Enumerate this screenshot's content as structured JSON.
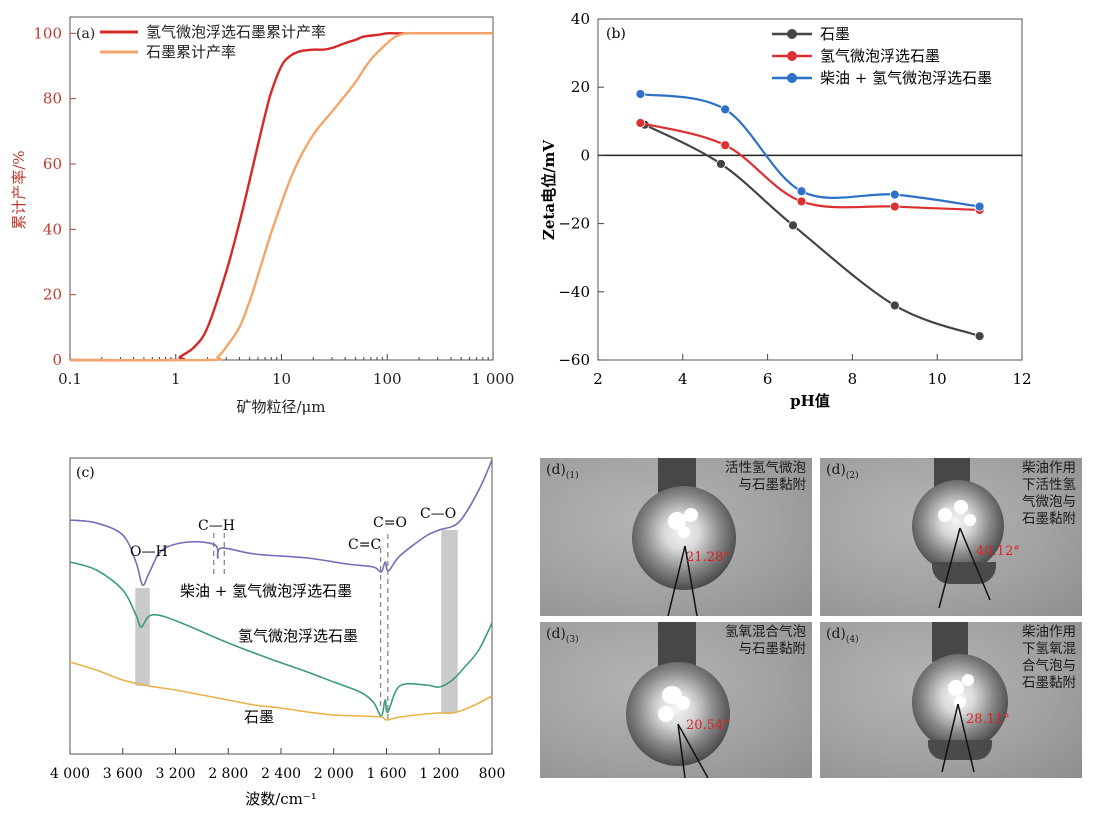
{
  "panel_a": {
    "label": "(a)",
    "colors": {
      "h2": "#d62828",
      "raw": "#f2a66a"
    },
    "chart_data": {
      "type": "line",
      "xscale": "log",
      "xlim": [
        0.1,
        1000
      ],
      "ylim": [
        0,
        105
      ],
      "xticks": [
        "0.1",
        "1",
        "10",
        "100",
        "1 000"
      ],
      "yticks": [
        "0",
        "20",
        "40",
        "60",
        "80",
        "100"
      ],
      "xlabel": "矿物粒径/μm",
      "ylabel": "累计产率/%",
      "series": [
        {
          "name": "氢气微泡浮选石墨累计产率",
          "x": [
            0.1,
            1.0,
            1.1,
            1.5,
            2,
            3,
            4,
            5,
            6,
            7,
            8,
            10,
            12,
            15,
            20,
            25,
            30,
            40,
            50,
            60,
            80,
            100,
            120,
            150,
            200,
            1000
          ],
          "y": [
            0,
            0,
            1,
            4,
            10,
            27,
            42,
            55,
            66,
            75,
            82,
            90,
            93,
            94.5,
            95,
            95,
            95.5,
            97,
            98,
            99,
            99.5,
            100,
            100,
            100,
            100,
            100
          ]
        },
        {
          "name": "石墨累计产率",
          "x": [
            0.1,
            2,
            2.5,
            3,
            4,
            5,
            6,
            7,
            8,
            10,
            12,
            15,
            20,
            25,
            30,
            40,
            50,
            60,
            70,
            80,
            100,
            120,
            150,
            200,
            1000
          ],
          "y": [
            0,
            0,
            1,
            4,
            10,
            18,
            26,
            33,
            39,
            48,
            55,
            62,
            69,
            73,
            76,
            81,
            85,
            89,
            92,
            94,
            97,
            99,
            100,
            100,
            100
          ]
        }
      ]
    }
  },
  "panel_b": {
    "label": "(b)",
    "colors": {
      "s1": "#444444",
      "s2": "#dc3030",
      "s3": "#2c70c8"
    },
    "chart_data": {
      "type": "line",
      "xlim": [
        2,
        12
      ],
      "ylim": [
        -60,
        40
      ],
      "xticks": [
        "2",
        "4",
        "6",
        "8",
        "10",
        "12"
      ],
      "yticks": [
        "40",
        "20",
        "0",
        "−20",
        "−40",
        "−60"
      ],
      "xlabel": "pH值",
      "ylabel": "Zeta电位/mV",
      "series": [
        {
          "name": "石墨",
          "x": [
            3.1,
            4.9,
            6.6,
            9.0,
            11.0
          ],
          "y": [
            9,
            -2.5,
            -20.5,
            -44,
            -53
          ]
        },
        {
          "name": "氢气微泡浮选石墨",
          "x": [
            3.0,
            5.0,
            6.8,
            9.0,
            11.0
          ],
          "y": [
            9.5,
            3,
            -13.5,
            -15,
            -16
          ]
        },
        {
          "name": "柴油 + 氢气微泡浮选石墨",
          "x": [
            3.0,
            5.0,
            6.8,
            9.0,
            11.0
          ],
          "y": [
            18,
            13.5,
            -10.5,
            -11.5,
            -15
          ]
        }
      ]
    }
  },
  "panel_c": {
    "label": "(c)",
    "colors": {
      "top": "#7b6bb5",
      "mid": "#3d9a82",
      "bottom": "#e8b24a",
      "band": "#bdbdbd"
    },
    "chart_data": {
      "type": "line",
      "xlim": [
        4000,
        800
      ],
      "xticks": [
        "4 000",
        "3 600",
        "3 200",
        "2 800",
        "2 400",
        "2 000",
        "1 600",
        "1 200",
        "800"
      ],
      "xlabel": "波数/cm⁻¹",
      "annotations": [
        "O—H",
        "C—H",
        "C=C",
        "C=O",
        "C—O"
      ],
      "series": [
        {
          "name": "柴油 + 氢气微泡浮选石墨"
        },
        {
          "name": "氢气微泡浮选石墨"
        },
        {
          "name": "石墨"
        }
      ]
    }
  },
  "panel_d": [
    {
      "tag": "(d)",
      "sub": "(1)",
      "lines": [
        "活性氢气微泡",
        "与石墨黏附"
      ],
      "angle": "21.28°"
    },
    {
      "tag": "(d)",
      "sub": "(2)",
      "lines": [
        "柴油作用",
        "下活性氢",
        "气微泡与",
        "石墨黏附"
      ],
      "angle": "40.12°"
    },
    {
      "tag": "(d)",
      "sub": "(3)",
      "lines": [
        "氢氧混合气泡",
        "与石墨黏附"
      ],
      "angle": "20.54°"
    },
    {
      "tag": "(d)",
      "sub": "(4)",
      "lines": [
        "柴油作用",
        "下氢氧混",
        "合气泡与",
        "石墨黏附"
      ],
      "angle": "28.11°"
    }
  ]
}
